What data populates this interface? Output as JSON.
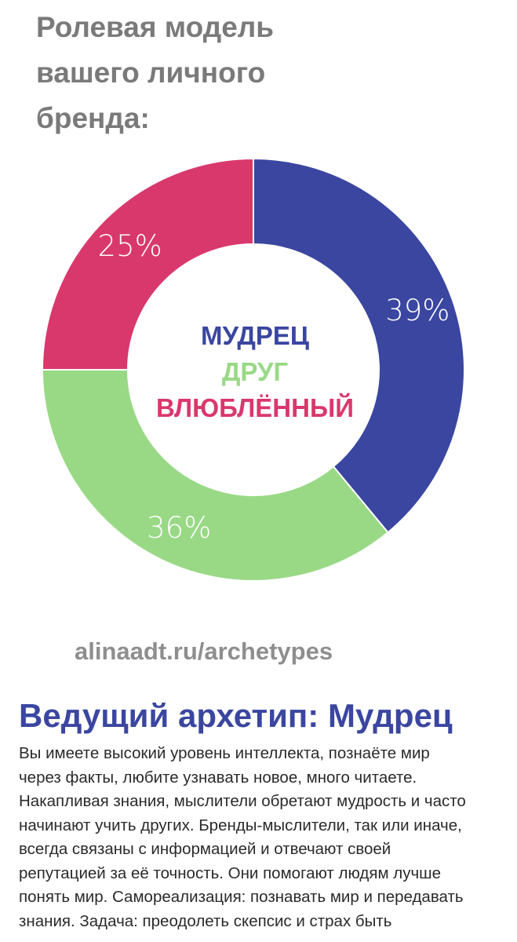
{
  "heading": {
    "lines": [
      "Ролевая модель",
      "вашего личного",
      "бренда:"
    ]
  },
  "chart_data": {
    "type": "pie",
    "variant": "donut",
    "categories": [
      "МУДРЕЦ",
      "ВЛЮБЛЁННЫЙ",
      "ДРУГ"
    ],
    "values": [
      39,
      25,
      36
    ],
    "unit": "%",
    "colors": [
      "#3a46a0",
      "#d9386d",
      "#99d986"
    ],
    "data_labels": [
      "39%",
      "25%",
      "36%"
    ],
    "center_labels": [
      {
        "text": "МУДРЕЦ",
        "color": "#3a46a0"
      },
      {
        "text": "ДРУГ",
        "color": "#99d986"
      },
      {
        "text": "ВЛЮБЛЁННЫЙ",
        "color": "#d9386d"
      }
    ]
  },
  "source": "alinaadt.ru/archetypes",
  "result": {
    "title": "Ведущий архетип: Мудрец",
    "description_lines": [
      "Вы имеете высокий уровень интеллекта, познаёте мир",
      "через факты, любите узнавать новое, много читаете.",
      "Накапливая знания, мыслители обретают мудрость и часто",
      "начинают учить других. Бренды-мыслители, так или иначе,",
      "всегда связаны с информацией и отвечают своей",
      "репутацией за её точность. Они помогают людям лучше",
      "понять мир. Самореализация: познавать мир и передавать",
      "знания. Задача: преодолеть скепсис и страх быть"
    ]
  }
}
